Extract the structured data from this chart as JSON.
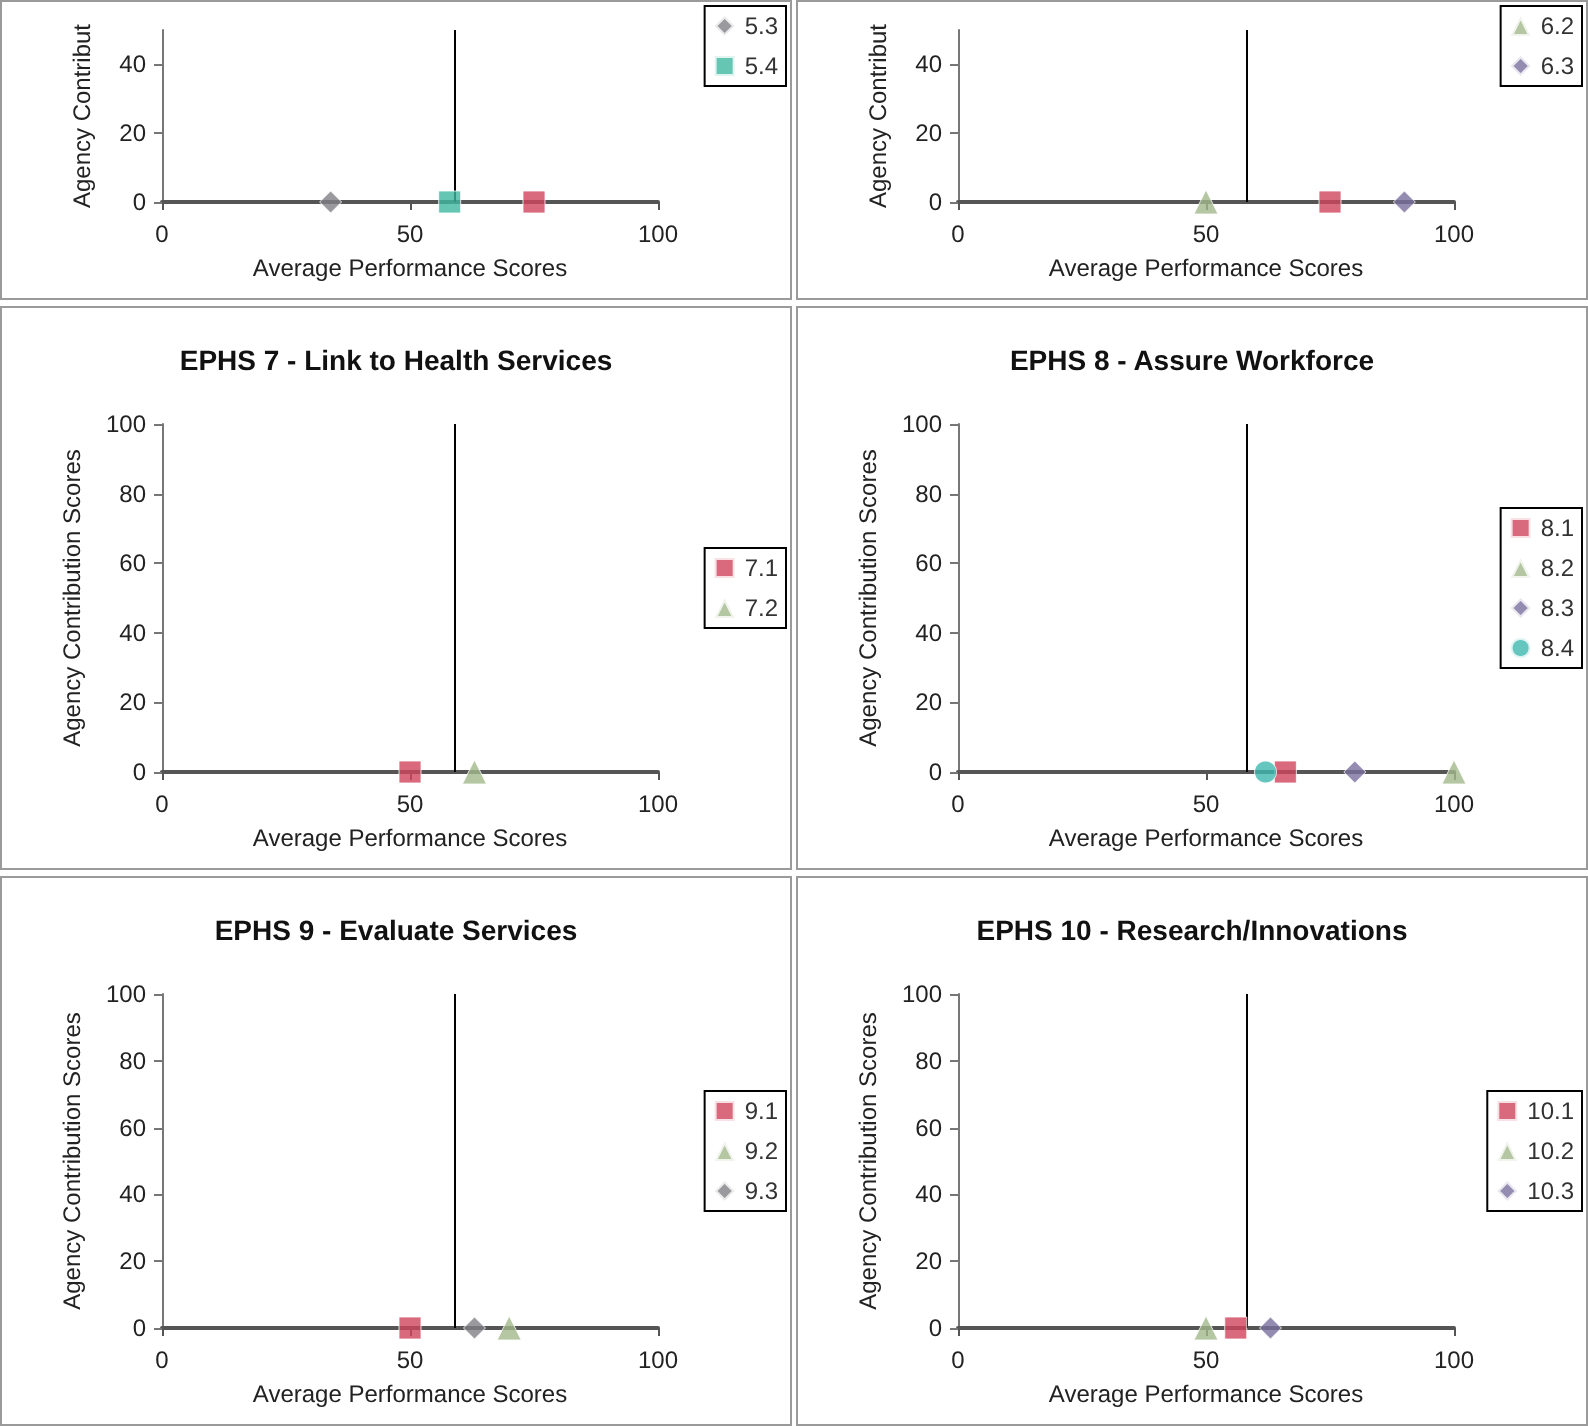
{
  "chart_data": [
    {
      "type": "scatter",
      "xlabel": "Average Performance Scores",
      "ylabel": "Agency Contribut",
      "xlim": [
        0,
        100
      ],
      "ylim": [
        0,
        50
      ],
      "xticks": [
        0,
        50,
        100
      ],
      "yticks": [
        0,
        20,
        40
      ],
      "grid": false,
      "legend": "right",
      "ref_lines": [
        {
          "axis": "x",
          "value": 59,
          "color": "#000000"
        }
      ],
      "series": [
        {
          "color": "#d0455e",
          "marker": "square",
          "x": [
            75
          ],
          "values": [
            0
          ]
        },
        {
          "name": "5.3",
          "color": "#7f7f86",
          "marker": "diamond",
          "x": [
            34
          ],
          "values": [
            0
          ]
        },
        {
          "name": "5.4",
          "color": "#3fb8a0",
          "marker": "square",
          "x": [
            58
          ],
          "values": [
            0
          ]
        }
      ]
    },
    {
      "type": "scatter",
      "xlabel": "Average Performance Scores",
      "ylabel": "Agency Contribut",
      "xlim": [
        0,
        100
      ],
      "ylim": [
        0,
        50
      ],
      "xticks": [
        0,
        50,
        100
      ],
      "yticks": [
        0,
        20,
        40
      ],
      "grid": false,
      "legend": "right",
      "ref_lines": [
        {
          "axis": "x",
          "value": 58,
          "color": "#000000"
        }
      ],
      "series": [
        {
          "color": "#d0455e",
          "marker": "square",
          "x": [
            75
          ],
          "values": [
            0
          ]
        },
        {
          "name": "6.2",
          "color": "#a3b88b",
          "marker": "triangle",
          "x": [
            50
          ],
          "values": [
            0
          ]
        },
        {
          "name": "6.3",
          "color": "#7b6f9e",
          "marker": "diamond",
          "x": [
            90
          ],
          "values": [
            0
          ]
        }
      ]
    },
    {
      "type": "scatter",
      "title": "EPHS 7 - Link to Health Services",
      "xlabel": "Average Performance Scores",
      "ylabel": "Agency Contribution Scores",
      "xlim": [
        0,
        100
      ],
      "ylim": [
        0,
        100
      ],
      "xticks": [
        0,
        50,
        100
      ],
      "yticks": [
        0,
        20,
        40,
        60,
        80,
        100
      ],
      "grid": false,
      "legend": "right",
      "ref_lines": [
        {
          "axis": "x",
          "value": 59,
          "color": "#000000"
        }
      ],
      "series": [
        {
          "name": "7.1",
          "color": "#d0455e",
          "marker": "square",
          "x": [
            50
          ],
          "values": [
            0
          ]
        },
        {
          "name": "7.2",
          "color": "#a3b88b",
          "marker": "triangle",
          "x": [
            63
          ],
          "values": [
            0
          ]
        }
      ]
    },
    {
      "type": "scatter",
      "title": "EPHS 8 - Assure Workforce",
      "xlabel": "Average Performance Scores",
      "ylabel": "Agency Contribution Scores",
      "xlim": [
        0,
        100
      ],
      "ylim": [
        0,
        100
      ],
      "xticks": [
        0,
        50,
        100
      ],
      "yticks": [
        0,
        20,
        40,
        60,
        80,
        100
      ],
      "grid": false,
      "legend": "right",
      "ref_lines": [
        {
          "axis": "x",
          "value": 58,
          "color": "#000000"
        }
      ],
      "series": [
        {
          "name": "8.1",
          "color": "#d0455e",
          "marker": "square",
          "x": [
            66
          ],
          "values": [
            0
          ]
        },
        {
          "name": "8.2",
          "color": "#a3b88b",
          "marker": "triangle",
          "x": [
            100
          ],
          "values": [
            0
          ]
        },
        {
          "name": "8.3",
          "color": "#7b6f9e",
          "marker": "diamond",
          "x": [
            80
          ],
          "values": [
            0
          ]
        },
        {
          "name": "8.4",
          "color": "#3fb8b0",
          "marker": "circle",
          "x": [
            62
          ],
          "values": [
            0
          ]
        }
      ]
    },
    {
      "type": "scatter",
      "title": "EPHS 9 - Evaluate Services",
      "xlabel": "Average Performance Scores",
      "ylabel": "Agency Contribution Scores",
      "xlim": [
        0,
        100
      ],
      "ylim": [
        0,
        100
      ],
      "xticks": [
        0,
        50,
        100
      ],
      "yticks": [
        0,
        20,
        40,
        60,
        80,
        100
      ],
      "grid": false,
      "legend": "right",
      "ref_lines": [
        {
          "axis": "x",
          "value": 59,
          "color": "#000000"
        }
      ],
      "series": [
        {
          "name": "9.1",
          "color": "#d0455e",
          "marker": "square",
          "x": [
            50
          ],
          "values": [
            0
          ]
        },
        {
          "name": "9.2",
          "color": "#a3b88b",
          "marker": "triangle",
          "x": [
            70
          ],
          "values": [
            0
          ]
        },
        {
          "name": "9.3",
          "color": "#7f7f86",
          "marker": "diamond",
          "x": [
            63
          ],
          "values": [
            0
          ]
        }
      ]
    },
    {
      "type": "scatter",
      "title": "EPHS 10 - Research/Innovations",
      "xlabel": "Average Performance Scores",
      "ylabel": "Agency Contribution Scores",
      "xlim": [
        0,
        100
      ],
      "ylim": [
        0,
        100
      ],
      "xticks": [
        0,
        50,
        100
      ],
      "yticks": [
        0,
        20,
        40,
        60,
        80,
        100
      ],
      "grid": false,
      "legend": "right",
      "ref_lines": [
        {
          "axis": "x",
          "value": 58,
          "color": "#000000"
        }
      ],
      "series": [
        {
          "name": "10.1",
          "color": "#d0455e",
          "marker": "square",
          "x": [
            56
          ],
          "values": [
            0
          ]
        },
        {
          "name": "10.2",
          "color": "#a3b88b",
          "marker": "triangle",
          "x": [
            50
          ],
          "values": [
            0
          ]
        },
        {
          "name": "10.3",
          "color": "#7b6f9e",
          "marker": "diamond",
          "x": [
            63
          ],
          "values": [
            0
          ]
        }
      ]
    }
  ]
}
